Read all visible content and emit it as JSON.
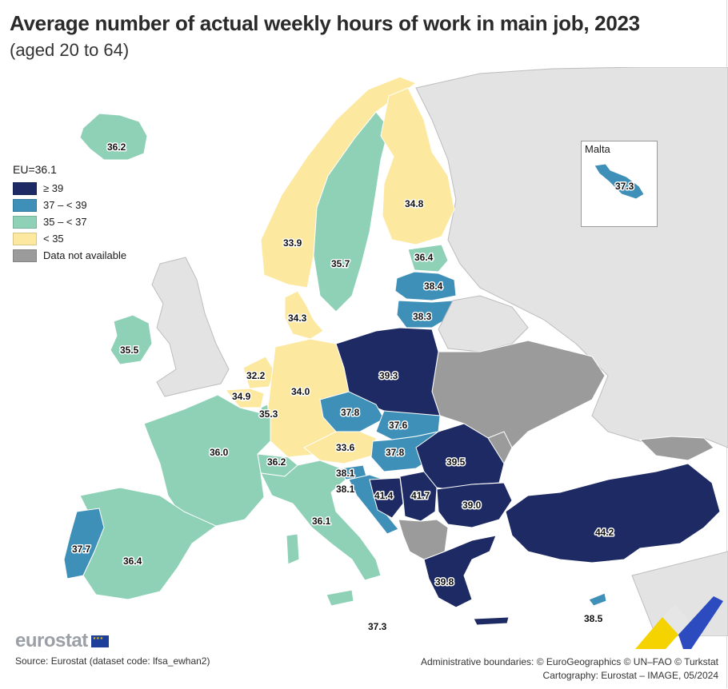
{
  "title": "Average number of actual weekly hours of work in main job, 2023",
  "subtitle": "(aged 20 to 64)",
  "legend": {
    "title": "EU=36.1",
    "items": [
      {
        "label": "≥ 39",
        "color": "#1d2a63"
      },
      {
        "label": "37 – < 39",
        "color": "#3f90b8"
      },
      {
        "label": "35 – < 37",
        "color": "#8ed1b6"
      },
      {
        "label": "< 35",
        "color": "#fce89f"
      },
      {
        "label": "Data not available",
        "color": "#9b9b9b"
      }
    ]
  },
  "inset": {
    "title": "Malta",
    "value": "37.3"
  },
  "values": {
    "iceland": "36.2",
    "ireland": "35.5",
    "norway": "33.9",
    "sweden": "35.7",
    "finland": "34.8",
    "estonia": "36.4",
    "latvia": "38.4",
    "lithuania": "38.3",
    "denmark": "34.3",
    "netherlands": "32.2",
    "belgium": "34.9",
    "luxembourg": "35.3",
    "germany": "34.0",
    "poland": "39.3",
    "czechia": "37.8",
    "slovakia": "37.6",
    "austria": "33.6",
    "hungary": "37.8",
    "switzerland": "36.2",
    "france": "36.0",
    "slovenia": "38.1",
    "croatia": "38.1",
    "bosnia": "41.4",
    "serbia": "41.7",
    "romania": "39.5",
    "bulgaria": "39.0",
    "italy": "36.1",
    "portugal": "37.7",
    "spain": "36.4",
    "greece": "39.8",
    "turkiye": "44.2",
    "cyprus": "38.5",
    "malta_main": "37.3"
  },
  "logo": "eurostat",
  "source": "Source: Eurostat (dataset code: lfsa_ewhan2)",
  "credits": {
    "line1": "Administrative boundaries: © EuroGeographics © UN–FAO © Turkstat",
    "line2": "Cartography: Eurostat – IMAGE, 05/2024"
  }
}
